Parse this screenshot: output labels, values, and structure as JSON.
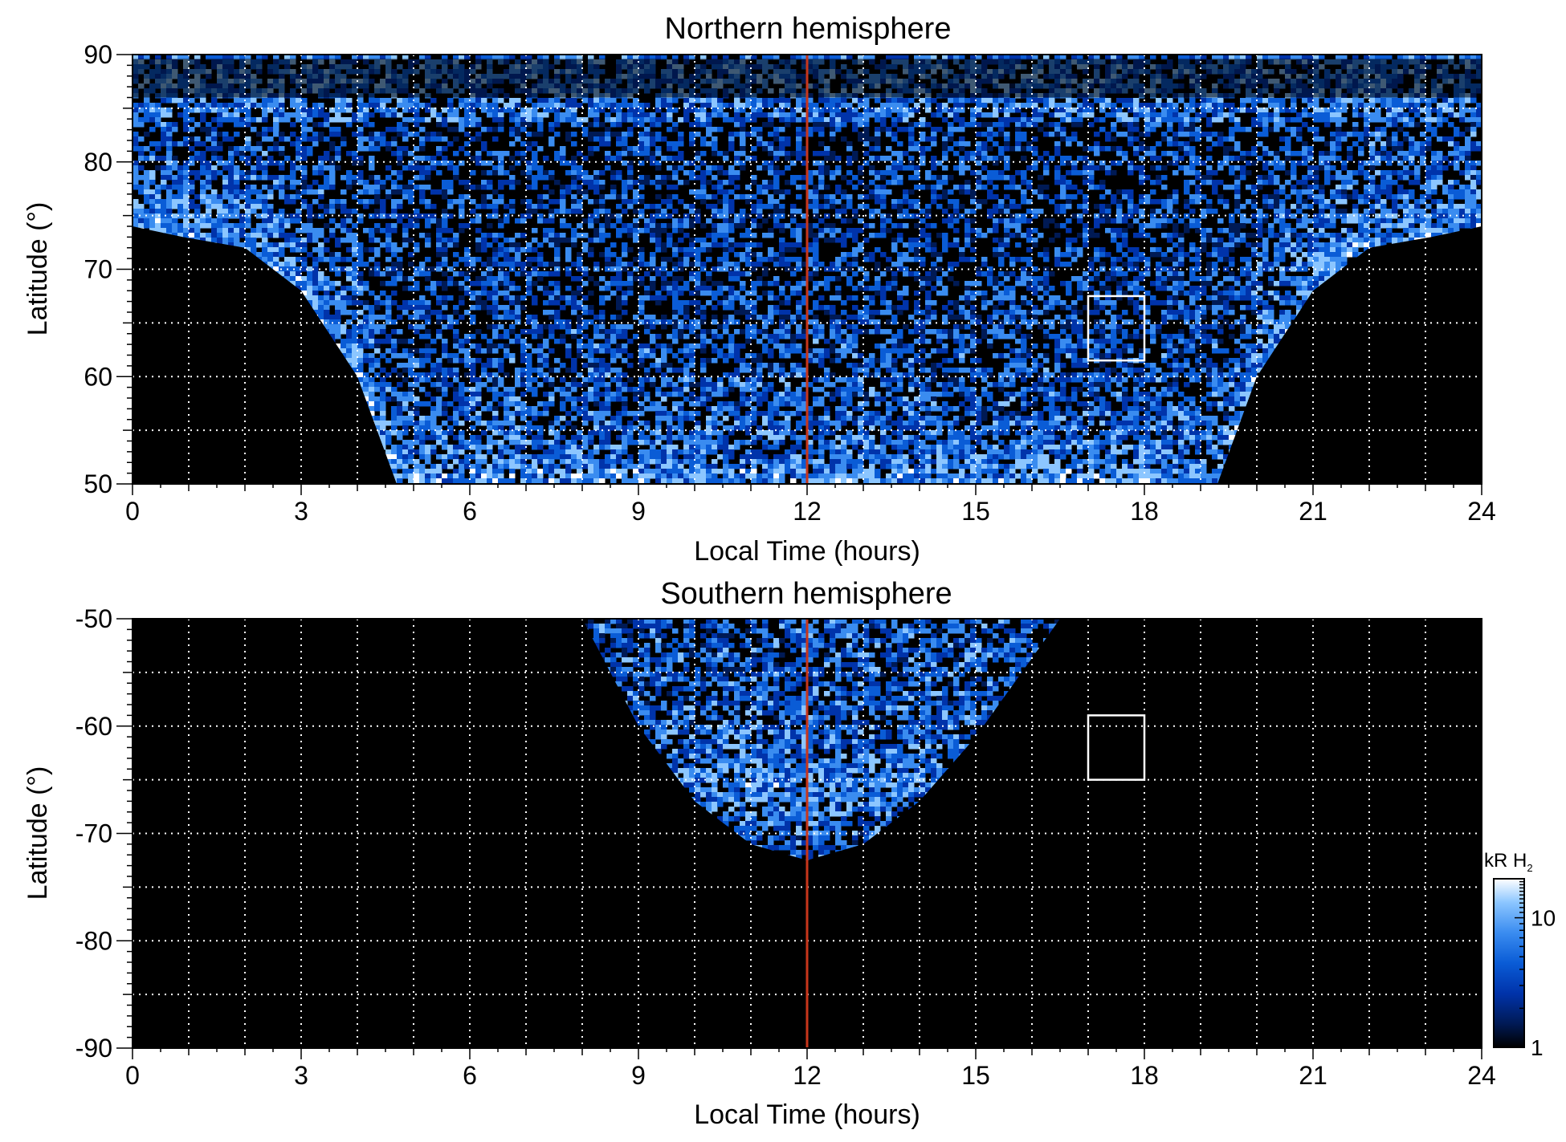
{
  "figure": {
    "colorbar": {
      "label": "kR H",
      "label_subscript": "2",
      "ticks": [
        {
          "value": 1,
          "label": "1"
        },
        {
          "value": 10,
          "label": "10"
        }
      ],
      "range": [
        1,
        20
      ],
      "scale": "log",
      "colormap": [
        "#000000",
        "#001a55",
        "#0033aa",
        "#0a5cd6",
        "#3a8cf0",
        "#8cc6ff",
        "#ffffff"
      ]
    }
  },
  "chart_data": [
    {
      "type": "heatmap",
      "title": "Northern hemisphere",
      "xlabel": "Local Time (hours)",
      "ylabel": "Latitude (°)",
      "xlim": [
        0,
        24
      ],
      "ylim": [
        50,
        90
      ],
      "x_ticks": [
        {
          "value": 0,
          "label": "0"
        },
        {
          "value": 3,
          "label": "3"
        },
        {
          "value": 6,
          "label": "6"
        },
        {
          "value": 9,
          "label": "9"
        },
        {
          "value": 12,
          "label": "12"
        },
        {
          "value": 15,
          "label": "15"
        },
        {
          "value": 18,
          "label": "18"
        },
        {
          "value": 21,
          "label": "21"
        },
        {
          "value": 24,
          "label": "24"
        }
      ],
      "y_ticks": [
        {
          "value": 50,
          "label": "50"
        },
        {
          "value": 60,
          "label": "60"
        },
        {
          "value": 70,
          "label": "70"
        },
        {
          "value": 80,
          "label": "80"
        },
        {
          "value": 90,
          "label": "90"
        }
      ],
      "grid": true,
      "grid_x": [
        1,
        2,
        3,
        4,
        5,
        6,
        7,
        8,
        9,
        10,
        11,
        13,
        14,
        15,
        16,
        17,
        18,
        19,
        20,
        21,
        22,
        23
      ],
      "grid_y": [
        55,
        60,
        65,
        70,
        75,
        80,
        85
      ],
      "coverage_boundary": [
        {
          "lt": 0.0,
          "lat": 74
        },
        {
          "lt": 0.9,
          "lat": 73
        },
        {
          "lt": 2.0,
          "lat": 72
        },
        {
          "lt": 3.0,
          "lat": 68
        },
        {
          "lt": 4.0,
          "lat": 60
        },
        {
          "lt": 4.7,
          "lat": 50
        },
        {
          "lt": 19.3,
          "lat": 50
        },
        {
          "lt": 20.0,
          "lat": 60
        },
        {
          "lt": 21.0,
          "lat": 68
        },
        {
          "lt": 22.0,
          "lat": 72
        },
        {
          "lt": 23.1,
          "lat": 73
        },
        {
          "lt": 24.0,
          "lat": 74
        }
      ],
      "reference_line": {
        "lt": 12,
        "color": "#c8361b"
      },
      "highlight_box": {
        "lt_range": [
          17,
          18
        ],
        "lat_range": [
          61.5,
          67.5
        ]
      },
      "colorbar_range": [
        1,
        20
      ]
    },
    {
      "type": "heatmap",
      "title": "Southern hemisphere",
      "xlabel": "Local Time (hours)",
      "ylabel": "Latitude (°)",
      "xlim": [
        0,
        24
      ],
      "ylim": [
        -90,
        -50
      ],
      "x_ticks": [
        {
          "value": 0,
          "label": "0"
        },
        {
          "value": 3,
          "label": "3"
        },
        {
          "value": 6,
          "label": "6"
        },
        {
          "value": 9,
          "label": "9"
        },
        {
          "value": 12,
          "label": "12"
        },
        {
          "value": 15,
          "label": "15"
        },
        {
          "value": 18,
          "label": "18"
        },
        {
          "value": 21,
          "label": "21"
        },
        {
          "value": 24,
          "label": "24"
        }
      ],
      "y_ticks": [
        {
          "value": -50,
          "label": "-50"
        },
        {
          "value": -60,
          "label": "-60"
        },
        {
          "value": -70,
          "label": "-70"
        },
        {
          "value": -80,
          "label": "-80"
        },
        {
          "value": -90,
          "label": "-90"
        }
      ],
      "grid": true,
      "grid_x": [
        1,
        2,
        3,
        4,
        5,
        6,
        7,
        8,
        9,
        10,
        11,
        13,
        14,
        15,
        16,
        17,
        18,
        19,
        20,
        21,
        22,
        23
      ],
      "grid_y": [
        -55,
        -60,
        -65,
        -70,
        -75,
        -80,
        -85
      ],
      "coverage_boundary": [
        {
          "lt": 8.0,
          "lat": -50
        },
        {
          "lt": 9.0,
          "lat": -60
        },
        {
          "lt": 10.0,
          "lat": -67
        },
        {
          "lt": 11.0,
          "lat": -71
        },
        {
          "lt": 12.0,
          "lat": -72.5
        },
        {
          "lt": 13.0,
          "lat": -71
        },
        {
          "lt": 14.0,
          "lat": -67
        },
        {
          "lt": 15.0,
          "lat": -61
        },
        {
          "lt": 16.5,
          "lat": -50
        }
      ],
      "reference_line": {
        "lt": 12,
        "color": "#c8361b"
      },
      "highlight_box": {
        "lt_range": [
          17,
          18
        ],
        "lat_range": [
          -65,
          -59
        ]
      },
      "colorbar_range": [
        1,
        20
      ]
    }
  ]
}
